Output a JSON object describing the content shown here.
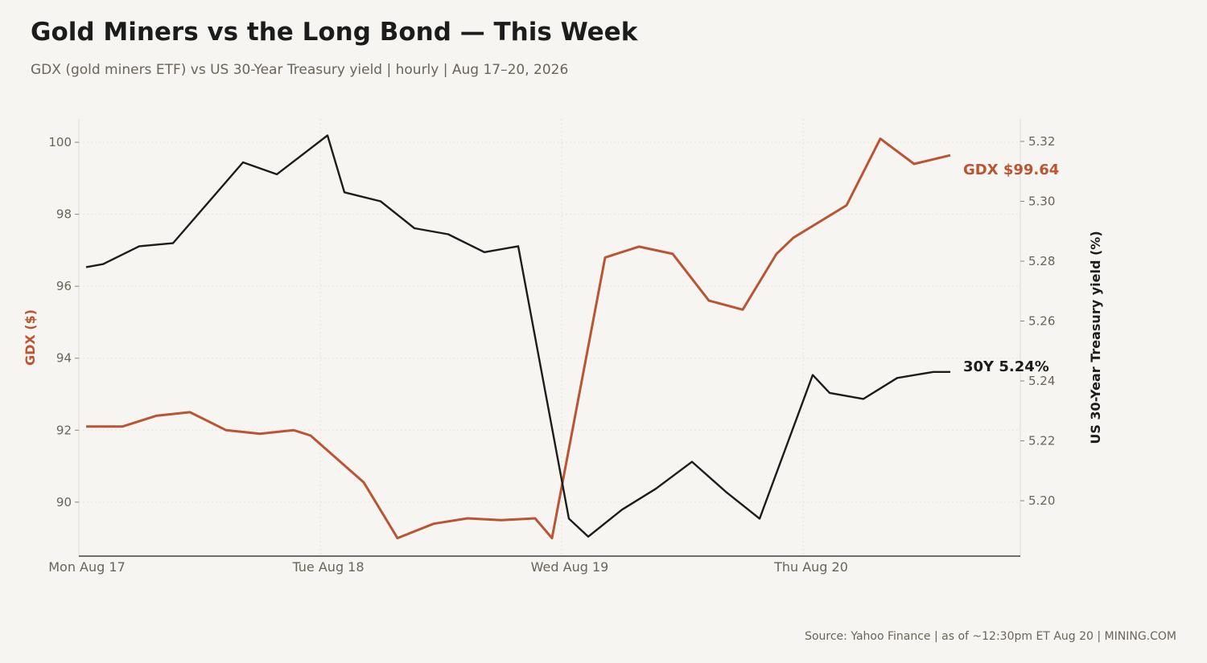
{
  "title": "Gold Miners vs the Long Bond — This Week",
  "subtitle": "GDX (gold miners ETF) vs US 30-Year Treasury yield  |  hourly  |  Aug 17–20, 2026",
  "source": "Source: Yahoo Finance  |  as of ~12:30pm ET Aug 20  |  MINING.COM",
  "chart_data": {
    "type": "line",
    "x_unit": "days from Mon Aug 17 00:00",
    "x_ticks": [
      {
        "x": 0,
        "label": "Mon Aug 17"
      },
      {
        "x": 1,
        "label": "Tue Aug 18"
      },
      {
        "x": 2,
        "label": "Wed Aug 19"
      },
      {
        "x": 3,
        "label": "Thu Aug 20"
      }
    ],
    "xlim": [
      0,
      3.9
    ],
    "grid": true,
    "y_left": {
      "label": "GDX ($)",
      "ylim": [
        88.5,
        100.65
      ],
      "ticks": [
        90,
        92,
        94,
        96,
        98,
        100
      ],
      "color": "#b95532"
    },
    "y_right": {
      "label": "US 30-Year Treasury yield (%)",
      "ylim": [
        5.1815,
        5.3275
      ],
      "ticks": [
        "5.20",
        "5.22",
        "5.24",
        "5.26",
        "5.28",
        "5.30",
        "5.32"
      ],
      "color": "#1c1c1c"
    },
    "series": [
      {
        "name": "GDX",
        "axis": "left",
        "color": "#b95532",
        "end_label": "GDX $99.64",
        "x": [
          0.03,
          0.18,
          0.32,
          0.46,
          0.61,
          0.75,
          0.89,
          0.96,
          1.18,
          1.32,
          1.47,
          1.61,
          1.75,
          1.89,
          1.96,
          2.18,
          2.32,
          2.46,
          2.61,
          2.75,
          2.89,
          2.96,
          3.18,
          3.32,
          3.46,
          3.61
        ],
        "values": [
          92.1,
          92.1,
          92.4,
          92.5,
          92.0,
          91.9,
          92.0,
          91.85,
          90.55,
          89.0,
          89.4,
          89.55,
          89.5,
          89.55,
          89.0,
          96.8,
          97.1,
          96.9,
          95.6,
          95.35,
          96.9,
          97.35,
          98.25,
          100.1,
          99.4,
          99.64
        ]
      },
      {
        "name": "30Y",
        "axis": "right",
        "color": "#1c1c1c",
        "end_label": "30Y 5.24%",
        "x": [
          0.03,
          0.1,
          0.25,
          0.39,
          0.68,
          0.82,
          1.03,
          1.1,
          1.25,
          1.39,
          1.53,
          1.68,
          1.82,
          2.03,
          2.11,
          2.25,
          2.39,
          2.54,
          2.68,
          2.82,
          3.04,
          3.11,
          3.25,
          3.39,
          3.54,
          3.61
        ],
        "values": [
          5.278,
          5.279,
          5.285,
          5.286,
          5.313,
          5.309,
          5.322,
          5.303,
          5.3,
          5.291,
          5.289,
          5.283,
          5.285,
          5.194,
          5.188,
          5.197,
          5.204,
          5.213,
          5.203,
          5.194,
          5.242,
          5.236,
          5.234,
          5.241,
          5.243,
          5.243
        ]
      }
    ]
  }
}
